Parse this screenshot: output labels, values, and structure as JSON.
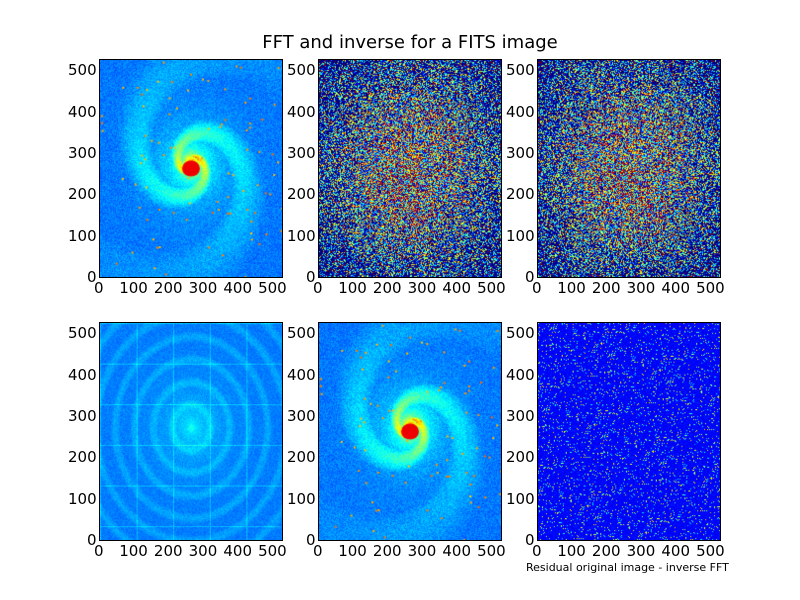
{
  "chart_data": {
    "type": "heatmap",
    "title": "FFT and inverse for a FITS image",
    "colormap": "jet",
    "panels": [
      {
        "id": "original",
        "content": "galaxy",
        "xlim": [
          0,
          530
        ],
        "ylim": [
          0,
          530
        ],
        "xticks": [
          "0",
          "100",
          "200",
          "300",
          "400",
          "500"
        ],
        "yticks": [
          "0",
          "100",
          "200",
          "300",
          "400",
          "500"
        ],
        "xlabel": ""
      },
      {
        "id": "fft-amplitude",
        "content": "fft",
        "xlim": [
          0,
          530
        ],
        "ylim": [
          0,
          530
        ],
        "xticks": [
          "0",
          "100",
          "200",
          "300",
          "400",
          "500"
        ],
        "yticks": [
          "0",
          "100",
          "200",
          "300",
          "400",
          "500"
        ],
        "xlabel": ""
      },
      {
        "id": "fft-phase",
        "content": "fft2",
        "xlim": [
          0,
          530
        ],
        "ylim": [
          0,
          530
        ],
        "xticks": [
          "0",
          "100",
          "200",
          "300",
          "400",
          "500"
        ],
        "yticks": [
          "0",
          "100",
          "200",
          "300",
          "400",
          "500"
        ],
        "xlabel": ""
      },
      {
        "id": "filtered",
        "content": "filtered",
        "xlim": [
          0,
          530
        ],
        "ylim": [
          0,
          530
        ],
        "xticks": [
          "0",
          "100",
          "200",
          "300",
          "400",
          "500"
        ],
        "yticks": [
          "0",
          "100",
          "200",
          "300",
          "400",
          "500"
        ],
        "xlabel": ""
      },
      {
        "id": "inverse-fft",
        "content": "galaxy",
        "xlim": [
          0,
          530
        ],
        "ylim": [
          0,
          530
        ],
        "xticks": [
          "0",
          "100",
          "200",
          "300",
          "400",
          "500"
        ],
        "yticks": [
          "0",
          "100",
          "200",
          "300",
          "400",
          "500"
        ],
        "xlabel": ""
      },
      {
        "id": "residual",
        "content": "residual",
        "xlim": [
          0,
          530
        ],
        "ylim": [
          0,
          530
        ],
        "xticks": [
          "0",
          "100",
          "200",
          "300",
          "400",
          "500"
        ],
        "yticks": [
          "0",
          "100",
          "200",
          "300",
          "400",
          "500"
        ],
        "xlabel": "Residual original image - inverse FFT"
      }
    ]
  }
}
